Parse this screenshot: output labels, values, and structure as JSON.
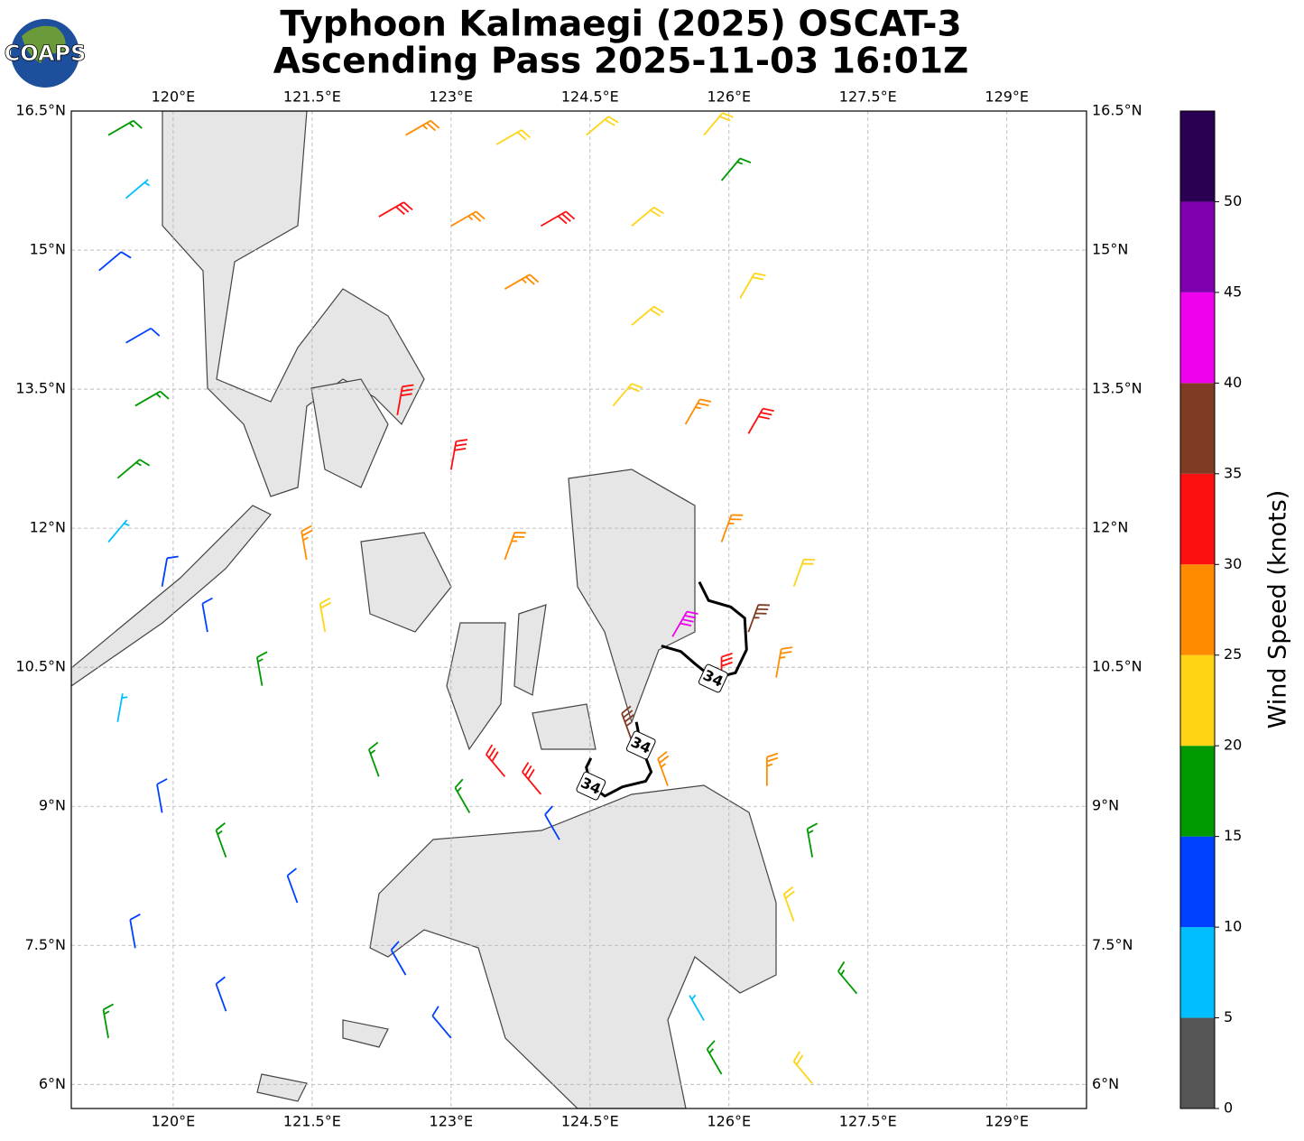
{
  "title": [
    "Typhoon Kalmaegi (2025) OSCAT-3",
    "Ascending Pass 2025-11-03 16:01Z"
  ],
  "logo": "COAPS",
  "map": {
    "lonlim": [
      118.9,
      129.86
    ],
    "latlim": [
      5.74,
      16.5
    ],
    "grid": true,
    "lonticks": [
      {
        "value": 120,
        "label": "120°E"
      },
      {
        "value": 121.5,
        "label": "121.5°E"
      },
      {
        "value": 123,
        "label": "123°E"
      },
      {
        "value": 124.5,
        "label": "124.5°E"
      },
      {
        "value": 126,
        "label": "126°E"
      },
      {
        "value": 127.5,
        "label": "127.5°E"
      },
      {
        "value": 129,
        "label": "129°E"
      }
    ],
    "latticks": [
      {
        "value": 16.5,
        "label": "16.5°N"
      },
      {
        "value": 15,
        "label": "15°N"
      },
      {
        "value": 13.5,
        "label": "13.5°N"
      },
      {
        "value": 12,
        "label": "12°N"
      },
      {
        "value": 10.5,
        "label": "10.5°N"
      },
      {
        "value": 9,
        "label": "9°N"
      },
      {
        "value": 7.5,
        "label": "7.5°N"
      },
      {
        "value": 6,
        "label": "6°N"
      }
    ],
    "contours": [
      {
        "level": 34,
        "lon": [
          125.27,
          125.48,
          125.63,
          125.83,
          126.07,
          126.19,
          126.17,
          126.02,
          125.78,
          125.68
        ],
        "lat": [
          10.73,
          10.67,
          10.54,
          10.38,
          10.44,
          10.69,
          11.03,
          11.15,
          11.22,
          11.42
        ]
      },
      {
        "level": 34,
        "lon": [
          125.0,
          125.05,
          125.16,
          125.1,
          124.85,
          124.66,
          124.51,
          124.46,
          124.51
        ],
        "lat": [
          9.91,
          9.66,
          9.37,
          9.27,
          9.21,
          9.11,
          9.22,
          9.42,
          9.52
        ]
      }
    ],
    "barbs": {
      "lon": [
        119.3,
        119.49,
        119.2,
        119.49,
        119.59,
        119.4,
        119.3,
        119.88,
        120.37,
        120.96,
        119.4,
        119.88,
        120.57,
        121.34,
        119.59,
        119.3,
        120.57,
        122.51,
        123.0,
        121.64,
        121.44,
        122.51,
        123.49,
        124.46,
        125.73,
        122.22,
        123.0,
        123.97,
        124.95,
        125.92,
        123.58,
        124.95,
        126.12,
        124.75,
        125.53,
        126.21,
        122.42,
        123.0,
        123.58,
        125.92,
        126.21,
        125.39,
        125.92,
        126.51,
        126.7,
        124.95,
        123.97,
        123.58,
        125.34,
        126.41,
        126.9,
        126.7,
        127.38,
        126.9,
        125.92,
        125.73,
        123.2,
        124.17,
        122.22
      ],
      "lat": [
        16.24,
        15.56,
        14.78,
        14.0,
        13.32,
        12.54,
        11.85,
        11.37,
        10.88,
        10.3,
        9.91,
        8.93,
        8.45,
        7.96,
        7.47,
        6.5,
        6.79,
        7.18,
        6.5,
        10.88,
        11.66,
        16.24,
        16.14,
        16.24,
        16.24,
        15.36,
        15.26,
        15.26,
        15.26,
        15.75,
        14.58,
        14.19,
        14.48,
        13.32,
        13.12,
        13.02,
        13.22,
        12.63,
        11.66,
        11.85,
        10.88,
        10.83,
        10.3,
        10.39,
        11.37,
        9.71,
        9.13,
        9.32,
        9.22,
        9.22,
        8.45,
        7.76,
        6.98,
        6.01,
        6.11,
        6.69,
        8.93,
        8.64,
        9.32
      ],
      "speed": [
        15,
        8,
        12,
        12,
        17,
        17,
        8,
        12,
        12,
        17,
        8,
        12,
        17,
        12,
        12,
        17,
        12,
        12,
        12,
        22,
        27,
        27,
        22,
        22,
        22,
        32,
        27,
        32,
        22,
        17,
        27,
        22,
        22,
        22,
        27,
        32,
        32,
        32,
        27,
        27,
        37,
        42,
        32,
        27,
        22,
        37,
        32,
        32,
        27,
        27,
        17,
        22,
        17,
        22,
        17,
        8,
        17,
        12,
        17
      ],
      "direction": [
        60,
        50,
        50,
        60,
        60,
        50,
        40,
        10,
        350,
        350,
        10,
        350,
        340,
        340,
        350,
        350,
        340,
        330,
        320,
        350,
        350,
        60,
        60,
        50,
        40,
        60,
        60,
        60,
        50,
        40,
        60,
        50,
        30,
        40,
        30,
        30,
        10,
        10,
        20,
        20,
        20,
        30,
        0,
        10,
        20,
        340,
        320,
        320,
        340,
        0,
        350,
        340,
        320,
        320,
        330,
        330,
        330,
        330,
        340
      ]
    }
  },
  "colorbar": {
    "label": "Wind Speed (knots)",
    "bounds": [
      0,
      5,
      10,
      15,
      20,
      25,
      30,
      35,
      40,
      45,
      50,
      55
    ],
    "colors": [
      "#555555",
      "#00bfff",
      "#0040ff",
      "#009900",
      "#ffd414",
      "#ff8c00",
      "#ff1010",
      "#7f3b24",
      "#ef00ef",
      "#8000b0",
      "#2a0052"
    ],
    "ticks": [
      0,
      5,
      10,
      15,
      20,
      25,
      30,
      35,
      40,
      45,
      50
    ]
  }
}
